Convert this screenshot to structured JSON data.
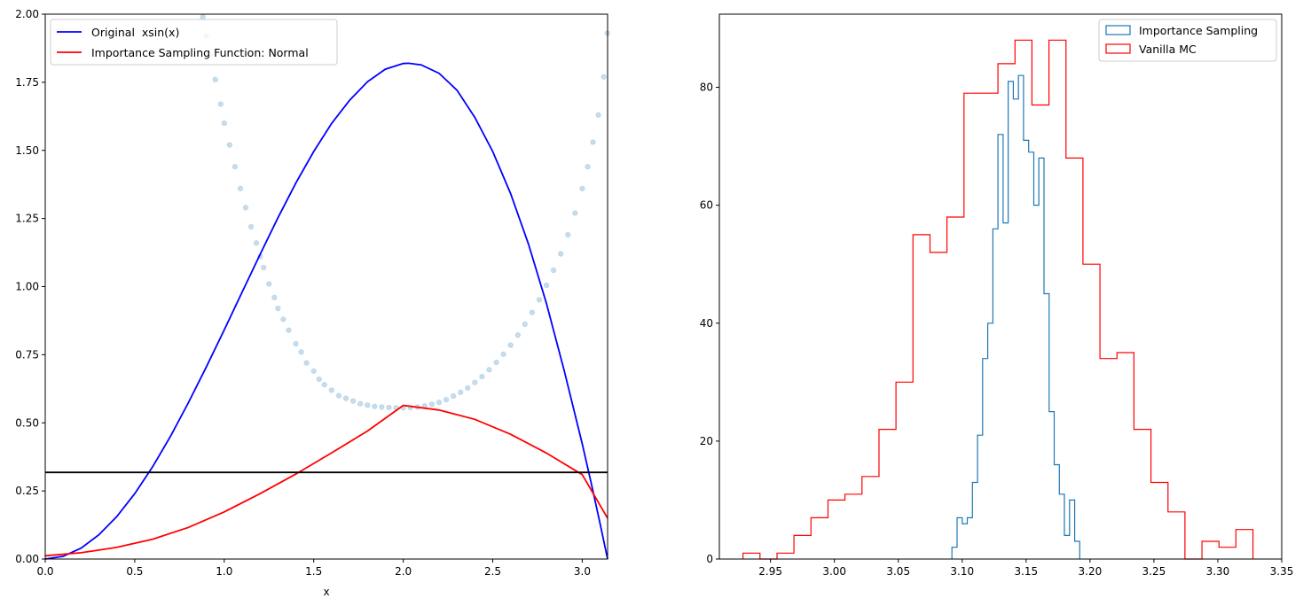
{
  "chart_data": [
    {
      "type": "line",
      "xlabel": "x",
      "ylabel": "",
      "xlim": [
        0,
        3.14159
      ],
      "ylim": [
        0,
        2.0
      ],
      "xticks": [
        "0.0",
        "0.5",
        "1.0",
        "1.5",
        "2.0",
        "2.5",
        "3.0"
      ],
      "xtick_values": [
        0,
        0.5,
        1.0,
        1.5,
        2.0,
        2.5,
        3.0
      ],
      "yticks": [
        "0.00",
        "0.25",
        "0.50",
        "0.75",
        "1.00",
        "1.25",
        "1.50",
        "1.75",
        "2.00"
      ],
      "ytick_values": [
        0,
        0.25,
        0.5,
        0.75,
        1.0,
        1.25,
        1.5,
        1.75,
        2.0
      ],
      "legend_position": "upper-left",
      "series": [
        {
          "name": "Original  xsin(x)",
          "color": "#0000ff",
          "x": [
            0,
            0.1,
            0.2,
            0.3,
            0.4,
            0.5,
            0.6,
            0.7,
            0.8,
            0.9,
            1.0,
            1.1,
            1.2,
            1.3,
            1.4,
            1.5,
            1.6,
            1.7,
            1.8,
            1.9,
            2.0,
            2.029,
            2.1,
            2.2,
            2.3,
            2.4,
            2.5,
            2.6,
            2.7,
            2.8,
            2.9,
            3.0,
            3.05,
            3.1,
            3.1416
          ],
          "y": [
            0,
            0.01,
            0.04,
            0.089,
            0.156,
            0.24,
            0.339,
            0.451,
            0.574,
            0.705,
            0.841,
            0.98,
            1.118,
            1.253,
            1.38,
            1.496,
            1.599,
            1.684,
            1.752,
            1.798,
            1.819,
            1.82,
            1.814,
            1.783,
            1.721,
            1.621,
            1.496,
            1.341,
            1.155,
            0.938,
            0.69,
            0.423,
            0.279,
            0.129,
            0
          ]
        },
        {
          "name": "Importance Sampling Function: Normal",
          "color": "#ff0000",
          "x": [
            0,
            0.2,
            0.4,
            0.6,
            0.8,
            1.0,
            1.2,
            1.4,
            1.6,
            1.8,
            2.0,
            2.2,
            2.4,
            2.6,
            2.8,
            3.0,
            3.1416
          ],
          "y": [
            0.012,
            0.023,
            0.043,
            0.073,
            0.116,
            0.173,
            0.24,
            0.312,
            0.39,
            0.47,
            0.564,
            0.547,
            0.513,
            0.458,
            0.389,
            0.31,
            0.15
          ]
        },
        {
          "name": "",
          "color": "#000000",
          "x": [
            0,
            3.1416
          ],
          "y": [
            0.318,
            0.318
          ]
        }
      ],
      "scatter": {
        "color": "#1f77b4",
        "x": [
          0.88,
          0.9,
          0.92,
          0.95,
          0.98,
          1.0,
          1.03,
          1.06,
          1.09,
          1.12,
          1.15,
          1.18,
          1.2,
          1.22,
          1.25,
          1.28,
          1.3,
          1.33,
          1.36,
          1.4,
          1.43,
          1.46,
          1.5,
          1.53,
          1.56,
          1.6,
          1.64,
          1.68,
          1.72,
          1.76,
          1.8,
          1.84,
          1.88,
          1.92,
          1.96,
          2.0,
          2.04,
          2.08,
          2.12,
          2.16,
          2.2,
          2.24,
          2.28,
          2.32,
          2.36,
          2.4,
          2.44,
          2.48,
          2.52,
          2.56,
          2.6,
          2.64,
          2.68,
          2.72,
          2.76,
          2.8,
          2.84,
          2.88,
          2.92,
          2.96,
          3.0,
          3.03,
          3.06,
          3.09,
          3.12,
          3.14
        ],
        "y": [
          1.99,
          1.92,
          1.85,
          1.76,
          1.67,
          1.6,
          1.52,
          1.44,
          1.36,
          1.29,
          1.22,
          1.16,
          1.11,
          1.07,
          1.01,
          0.96,
          0.92,
          0.88,
          0.84,
          0.79,
          0.76,
          0.72,
          0.69,
          0.66,
          0.64,
          0.62,
          0.6,
          0.59,
          0.58,
          0.57,
          0.565,
          0.56,
          0.558,
          0.556,
          0.555,
          0.555,
          0.556,
          0.558,
          0.562,
          0.568,
          0.575,
          0.585,
          0.598,
          0.612,
          0.628,
          0.648,
          0.67,
          0.695,
          0.722,
          0.752,
          0.785,
          0.822,
          0.862,
          0.905,
          0.952,
          1.005,
          1.06,
          1.12,
          1.19,
          1.27,
          1.36,
          1.44,
          1.53,
          1.63,
          1.77,
          1.93
        ]
      }
    },
    {
      "type": "histogram",
      "xlim": [
        2.91,
        3.35
      ],
      "ylim": [
        0,
        92.4
      ],
      "xticks": [
        "2.95",
        "3.00",
        "3.05",
        "3.10",
        "3.15",
        "3.20",
        "3.25",
        "3.30",
        "3.35"
      ],
      "xtick_values": [
        2.95,
        3.0,
        3.05,
        3.1,
        3.15,
        3.2,
        3.25,
        3.3,
        3.35
      ],
      "yticks": [
        "0",
        "20",
        "40",
        "60",
        "80"
      ],
      "ytick_values": [
        0,
        20,
        40,
        60,
        80
      ],
      "legend_position": "upper-right",
      "series": [
        {
          "name": "Importance Sampling",
          "color": "#1f77b4",
          "bin_edges": [
            3.092,
            3.096,
            3.1,
            3.104,
            3.108,
            3.112,
            3.116,
            3.12,
            3.124,
            3.128,
            3.132,
            3.136,
            3.14,
            3.144,
            3.148,
            3.152,
            3.156,
            3.16,
            3.164,
            3.168,
            3.172,
            3.176,
            3.18,
            3.184,
            3.188,
            3.192
          ],
          "counts": [
            2,
            7,
            6,
            7,
            13,
            21,
            34,
            40,
            56,
            72,
            57,
            81,
            78,
            82,
            71,
            69,
            60,
            68,
            45,
            25,
            16,
            11,
            4,
            10,
            3
          ]
        },
        {
          "name": "Vanilla MC",
          "color": "#ff0000",
          "bin_edges": [
            2.9285,
            2.9418,
            2.9551,
            2.9684,
            2.9817,
            2.995,
            3.0083,
            3.0216,
            3.0349,
            3.0482,
            3.0615,
            3.0748,
            3.0881,
            3.1014,
            3.1147,
            3.128,
            3.1413,
            3.1546,
            3.1679,
            3.1812,
            3.1945,
            3.2078,
            3.2211,
            3.2344,
            3.2477,
            3.261,
            3.2743,
            3.2876,
            3.3009,
            3.3142,
            3.3275
          ],
          "counts": [
            1,
            0,
            1,
            4,
            7,
            10,
            11,
            14,
            22,
            30,
            55,
            52,
            58,
            79,
            79,
            84,
            88,
            77,
            88,
            68,
            50,
            34,
            35,
            22,
            13,
            8,
            0,
            3,
            2,
            5
          ]
        }
      ]
    }
  ]
}
